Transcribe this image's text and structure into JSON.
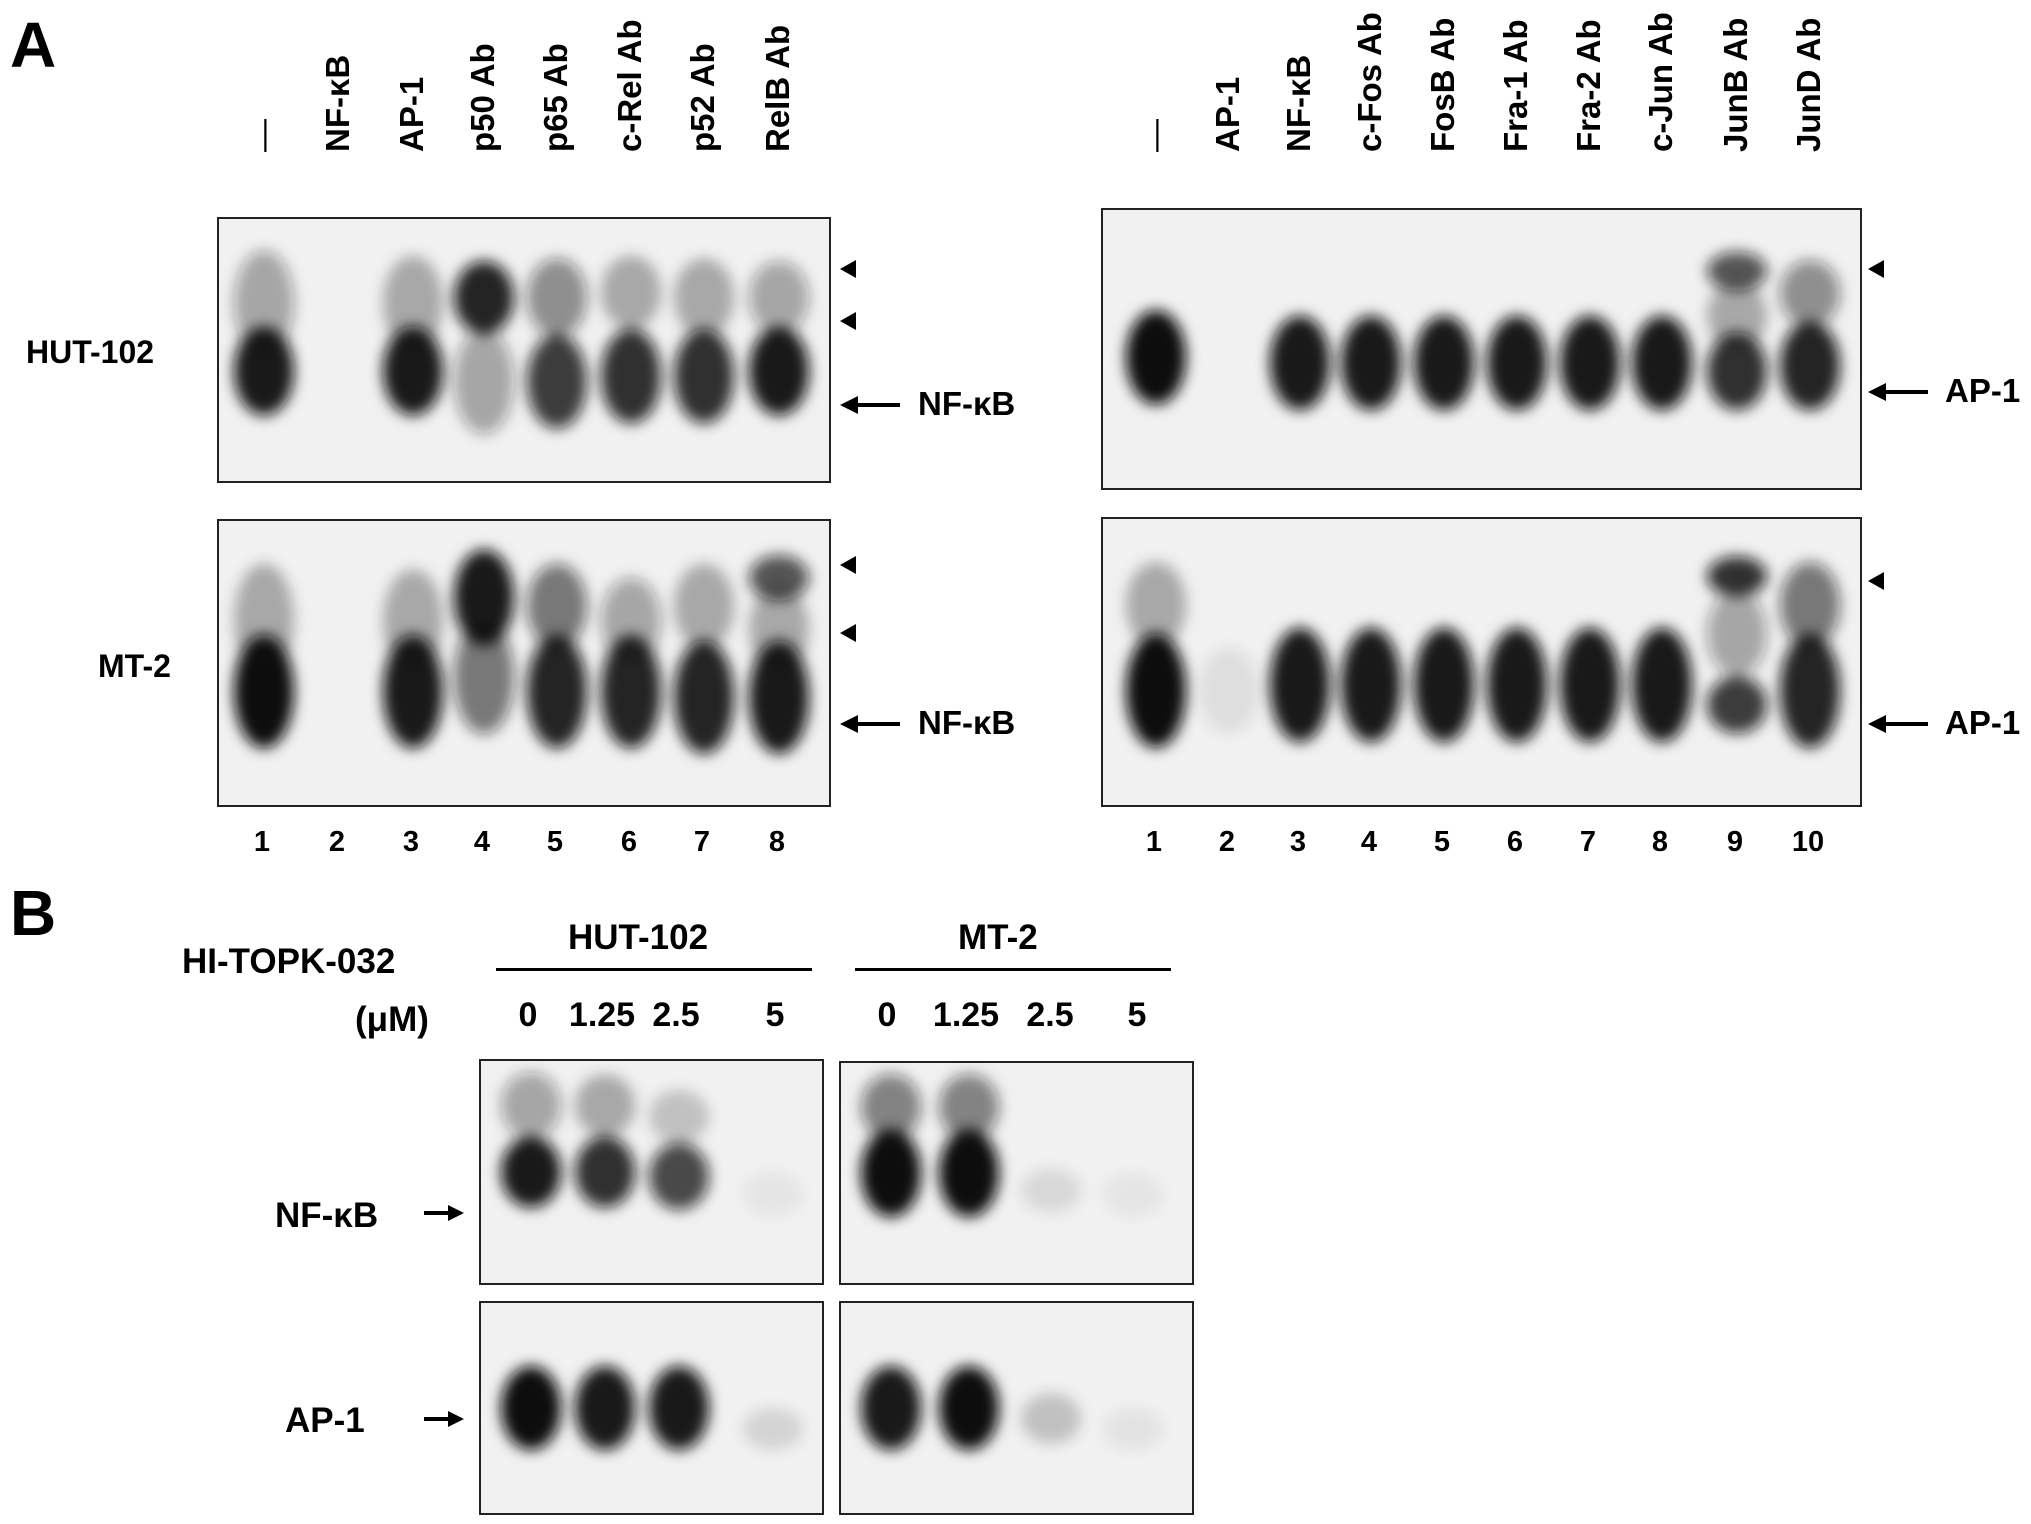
{
  "panelA": {
    "letter": "A",
    "left": {
      "lanes": [
        "—",
        "NF-κB",
        "AP-1",
        "p50 Ab",
        "p65 Ab",
        "c-Rel Ab",
        "p52 Ab",
        "RelB Ab"
      ],
      "numbers": [
        "1",
        "2",
        "3",
        "4",
        "5",
        "6",
        "7",
        "8"
      ],
      "band_label": "NF-κB"
    },
    "right": {
      "lanes": [
        "—",
        "AP-1",
        "NF-κB",
        "c-Fos Ab",
        "FosB Ab",
        "Fra-1 Ab",
        "Fra-2 Ab",
        "c-Jun Ab",
        "JunB Ab",
        "JunD Ab"
      ],
      "numbers": [
        "1",
        "2",
        "3",
        "4",
        "5",
        "6",
        "7",
        "8",
        "9",
        "10"
      ],
      "band_label": "AP-1"
    },
    "rows": [
      "HUT-102",
      "MT-2"
    ]
  },
  "panelB": {
    "letter": "B",
    "treatment": "HI-TOPK-032",
    "unit": "(μM)",
    "groups": [
      {
        "cell_line": "HUT-102",
        "concentrations": [
          "0",
          "1.25",
          "2.5",
          "5"
        ]
      },
      {
        "cell_line": "MT-2",
        "concentrations": [
          "0",
          "1.25",
          "2.5",
          "5"
        ]
      }
    ],
    "rows": [
      "NF-κB",
      "AP-1"
    ]
  },
  "colors": {
    "background": "#ffffff",
    "gel_background": "#f1f1f1",
    "band": "#111111"
  }
}
